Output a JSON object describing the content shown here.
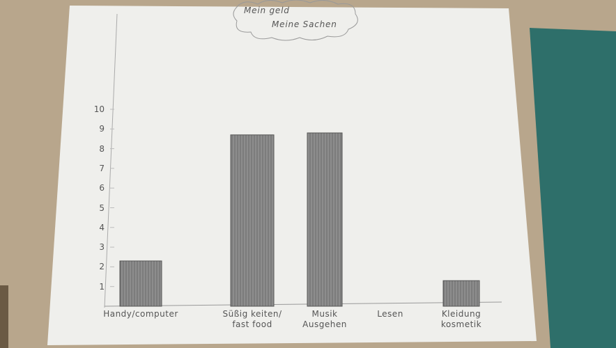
{
  "chart_data": {
    "type": "bar",
    "title": [
      "Mein geld",
      "Meine Sachen"
    ],
    "categories": [
      "Handy/computer",
      "Süßig keiten/\nfast food",
      "Musik\nAusgehen",
      "Lesen",
      "Kleidung\nkosmetik"
    ],
    "values": [
      2.3,
      8.7,
      8.8,
      0,
      1.3
    ],
    "color": "#7a7a7a",
    "ylim": [
      0,
      10
    ],
    "yticks": [
      1,
      2,
      3,
      4,
      5,
      6,
      7,
      8,
      9,
      10
    ]
  }
}
